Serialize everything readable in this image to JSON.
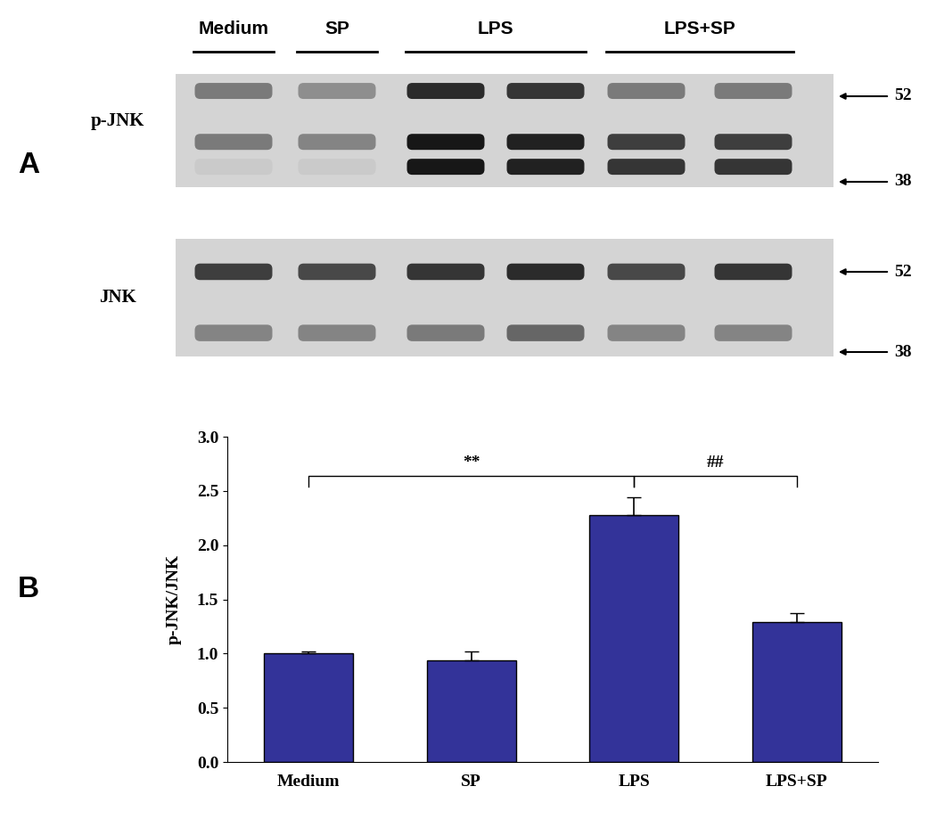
{
  "panel_labels": [
    "A",
    "B"
  ],
  "blot": {
    "groups": [
      {
        "label": "Medium",
        "lanes": 1
      },
      {
        "label": "SP",
        "lanes": 1
      },
      {
        "label": "LPS",
        "lanes": 2
      },
      {
        "label": "LPS+SP",
        "lanes": 2
      }
    ],
    "rows": [
      {
        "name": "p-JNK",
        "markers": [
          52,
          38
        ],
        "band_intensity": [
          [
            0.45,
            0.35,
            0.85,
            0.8,
            0.45,
            0.45
          ],
          [
            0.45,
            0.4,
            0.95,
            0.9,
            0.75,
            0.75
          ],
          [
            0.05,
            0.05,
            0.95,
            0.9,
            0.8,
            0.8
          ]
        ]
      },
      {
        "name": "JNK",
        "markers": [
          52,
          38
        ],
        "band_intensity": [
          [
            0.75,
            0.7,
            0.8,
            0.85,
            0.7,
            0.8
          ],
          [
            0.4,
            0.4,
            0.45,
            0.55,
            0.4,
            0.4
          ]
        ]
      }
    ]
  },
  "chart_data": {
    "type": "bar",
    "categories": [
      "Medium",
      "SP",
      "LPS",
      "LPS+SP"
    ],
    "values": [
      1.0,
      0.94,
      2.28,
      1.29
    ],
    "errors": [
      0.02,
      0.08,
      0.16,
      0.08
    ],
    "color": "#333399",
    "y_label": "p-JNK/JNK",
    "ylim": [
      0,
      3.0
    ],
    "yticks": [
      {
        "value": 0,
        "label": "0.0"
      },
      {
        "value": 0.5,
        "label": "0.5"
      },
      {
        "value": 1.0,
        "label": "1.0"
      },
      {
        "value": 1.5,
        "label": "1.5"
      },
      {
        "value": 2.0,
        "label": "2.0"
      },
      {
        "value": 2.5,
        "label": "2.5"
      },
      {
        "value": 3.0,
        "label": "3.0"
      }
    ],
    "annotations": [
      {
        "between": [
          "Medium",
          "LPS"
        ],
        "text": "**"
      },
      {
        "between": [
          "LPS",
          "LPS+SP"
        ],
        "text": "##"
      }
    ]
  }
}
